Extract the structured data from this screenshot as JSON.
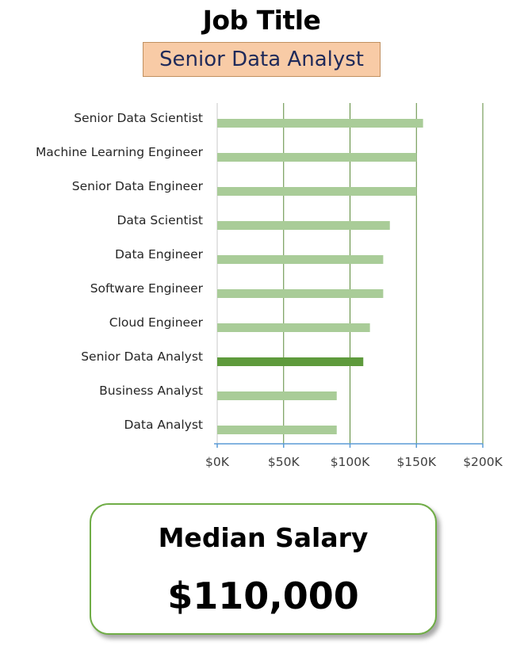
{
  "header": {
    "title": "Job Title",
    "selected_job": "Senior Data Analyst"
  },
  "colors": {
    "bar": "#a9cc98",
    "bar_highlight": "#5e9a3c",
    "gridline": "#5b8a3a",
    "axis": "#5b9bd5",
    "card_border": "#70ad47",
    "selected_box_bg": "#f8cba6"
  },
  "chart_data": {
    "type": "bar",
    "orientation": "horizontal",
    "categories": [
      "Senior Data Scientist",
      "Machine Learning Engineer",
      "Senior Data Engineer",
      "Data Scientist",
      "Data Engineer",
      "Software Engineer",
      "Cloud Engineer",
      "Senior Data Analyst",
      "Business Analyst",
      "Data Analyst"
    ],
    "values": [
      155000,
      150000,
      150000,
      130000,
      125000,
      125000,
      115000,
      110000,
      90000,
      90000
    ],
    "highlight": "Senior Data Analyst",
    "xlim": [
      0,
      200000
    ],
    "xticks": [
      0,
      50000,
      100000,
      150000,
      200000
    ],
    "xtick_labels": [
      "$0K",
      "$50K",
      "$100K",
      "$150K",
      "$200K"
    ],
    "grid": true
  },
  "summary": {
    "label": "Median Salary",
    "value": "$110,000"
  }
}
